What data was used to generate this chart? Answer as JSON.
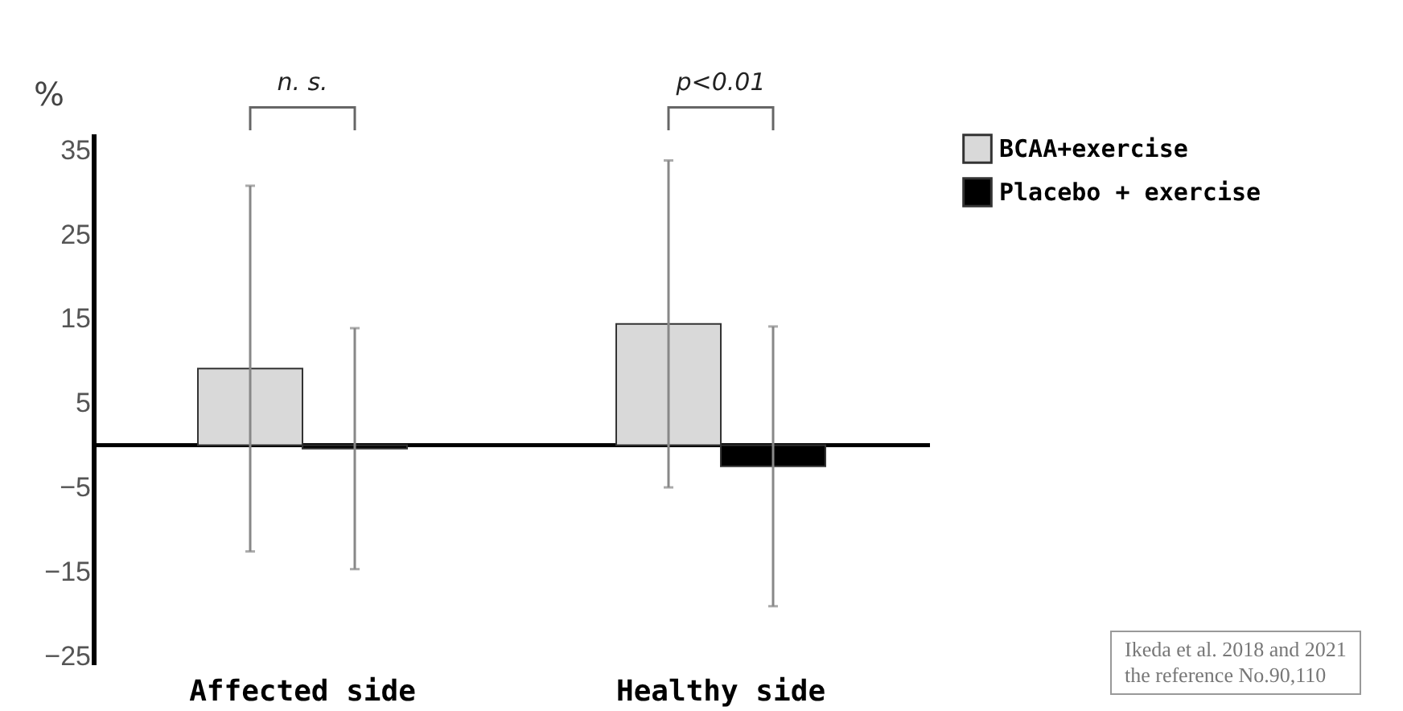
{
  "chart_data": {
    "type": "bar",
    "ylabel": "%",
    "categories": [
      "Affected side",
      "Healthy side"
    ],
    "series": [
      {
        "name": "BCAA+exercise",
        "color": "#d9d9d9",
        "values": [
          9.1,
          14.4
        ],
        "errors": [
          21.7,
          19.4
        ]
      },
      {
        "name": "Placebo + exercise",
        "color": "#000000",
        "values": [
          -0.4,
          -2.5
        ],
        "errors": [
          14.3,
          16.6
        ]
      }
    ],
    "ylim": [
      -26,
      37
    ],
    "yticks": [
      35,
      25,
      15,
      5,
      -5,
      -15,
      -25
    ],
    "grid": false,
    "legend": "right",
    "annotations": [
      "n. s.",
      "p<0.01",
      "Ikeda et al. 2018 and 2021\nthe reference No.90,110"
    ]
  }
}
